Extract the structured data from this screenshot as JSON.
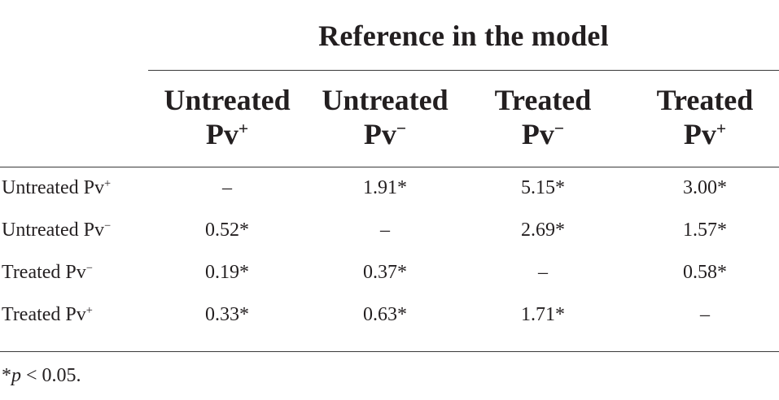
{
  "table": {
    "group_header": "Reference in the model",
    "columns": [
      {
        "name": "Untreated",
        "sub": "Pv",
        "sign": "+"
      },
      {
        "name": "Untreated",
        "sub": "Pv",
        "sign": "−"
      },
      {
        "name": "Treated",
        "sub": "Pv",
        "sign": "−"
      },
      {
        "name": "Treated",
        "sub": "Pv",
        "sign": "+"
      }
    ],
    "rows": [
      {
        "label": "Untreated Pv",
        "sign": "+",
        "values": [
          "–",
          "1.91*",
          "5.15*",
          "3.00*"
        ]
      },
      {
        "label": "Untreated Pv",
        "sign": "−",
        "values": [
          "0.52*",
          "–",
          "2.69*",
          "1.57*"
        ]
      },
      {
        "label": "Treated Pv",
        "sign": "−",
        "values": [
          "0.19*",
          "0.37*",
          "–",
          "0.58*"
        ]
      },
      {
        "label": "Treated Pv",
        "sign": "+",
        "values": [
          "0.33*",
          "0.63*",
          "1.71*",
          "–"
        ]
      }
    ]
  },
  "footnote": {
    "prefix": "*",
    "symbol": "p",
    "text": " < 0.05."
  }
}
